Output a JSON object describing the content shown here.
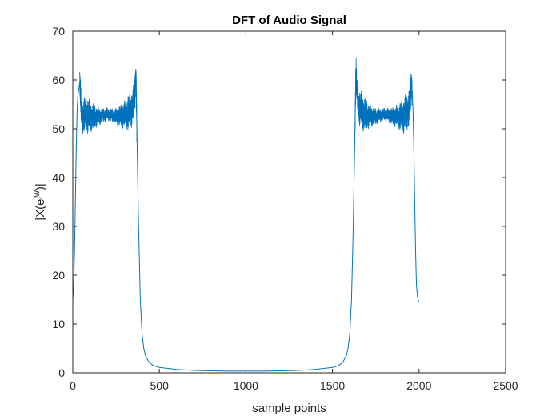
{
  "chart_data": {
    "type": "line",
    "title": "DFT of Audio Signal",
    "xlabel": "sample points",
    "ylabel": "|X(e^{jw})|",
    "ylabel_parts": {
      "pre": "|X(e",
      "sup": "jw",
      "post": ")|"
    },
    "xlim": [
      0,
      2500
    ],
    "ylim": [
      0,
      70
    ],
    "xticks": [
      0,
      500,
      1000,
      1500,
      2000,
      2500
    ],
    "yticks": [
      0,
      10,
      20,
      30,
      40,
      50,
      60,
      70
    ],
    "grid": false,
    "line_color": "#0072BD",
    "series": [
      {
        "x": [
          0,
          5,
          10,
          15,
          20,
          25,
          30,
          35,
          40,
          45,
          50,
          60,
          80,
          100,
          150,
          200,
          250,
          300,
          330,
          350,
          360,
          365,
          370,
          380,
          390,
          400,
          410,
          420,
          440,
          460,
          480,
          500,
          600,
          700,
          800,
          900,
          1000,
          1100,
          1200,
          1300,
          1400,
          1500,
          1520,
          1540,
          1560,
          1580,
          1590,
          1600,
          1610,
          1620,
          1630,
          1635,
          1640,
          1650,
          1670,
          1700,
          1750,
          1800,
          1850,
          1900,
          1920,
          1940,
          1950,
          1955,
          1960,
          1965,
          1970,
          1975,
          1980,
          1985,
          1990,
          1995,
          2000
        ],
        "y": [
          15,
          18,
          25,
          35,
          46,
          54,
          57,
          58,
          59.5,
          56,
          53,
          52.5,
          53,
          52.5,
          52.5,
          53,
          52.5,
          52.8,
          53.5,
          55,
          58,
          61.8,
          50,
          30,
          15,
          8,
          5,
          3.5,
          2.2,
          1.6,
          1.3,
          1.1,
          0.7,
          0.5,
          0.4,
          0.35,
          0.35,
          0.35,
          0.4,
          0.5,
          0.7,
          1.1,
          1.3,
          1.6,
          2.2,
          3.5,
          5,
          8,
          15,
          30,
          50,
          61.8,
          58,
          55,
          53.5,
          52.8,
          52.5,
          53,
          52.5,
          52.5,
          53,
          54,
          56,
          59.5,
          58,
          54,
          46,
          35,
          25,
          18,
          16,
          15,
          14.5
        ]
      }
    ],
    "noise_bands": [
      {
        "x_range": [
          40,
          370
        ],
        "amplitude": 4
      },
      {
        "x_range": [
          1630,
          1960
        ],
        "amplitude": 4
      }
    ]
  }
}
